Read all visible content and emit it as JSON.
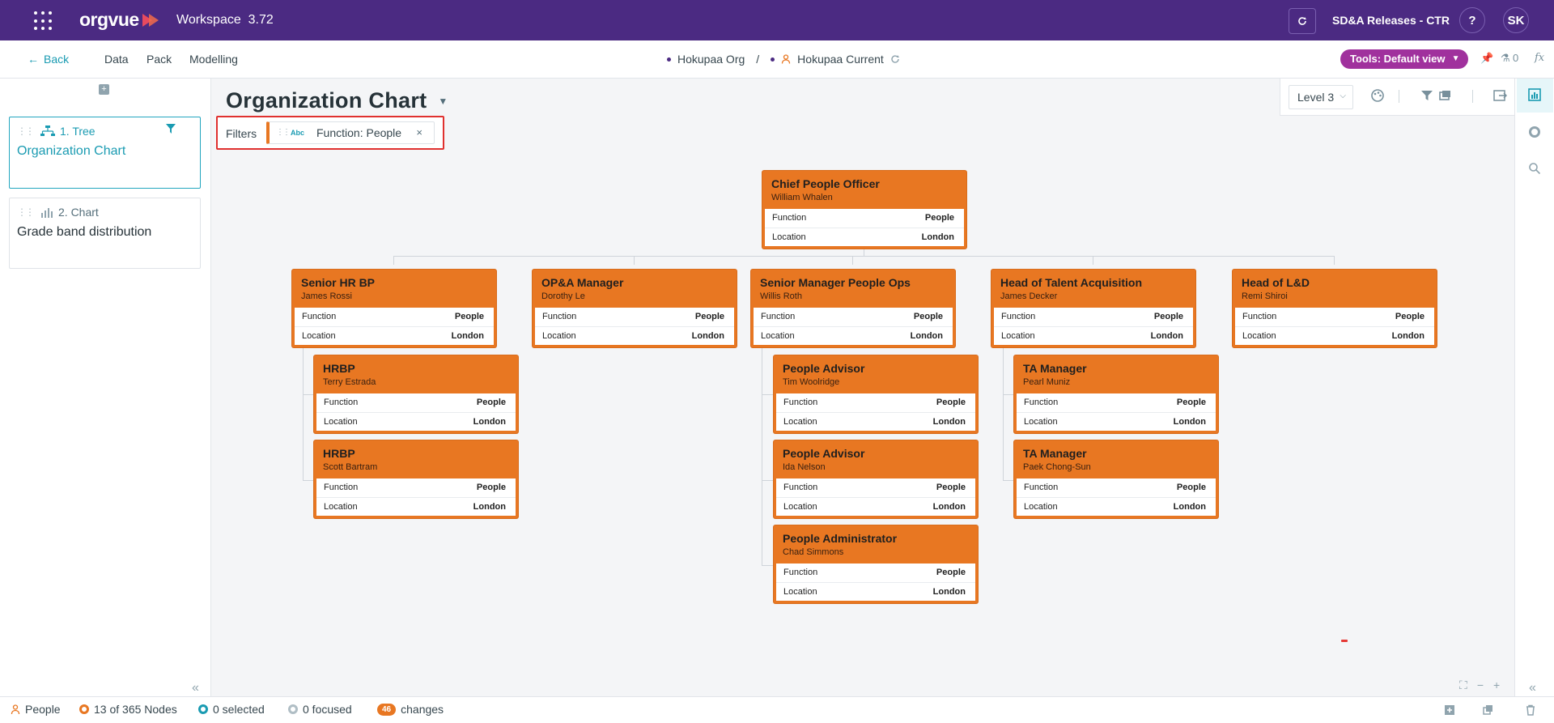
{
  "topbar": {
    "logo_text": "orgvue",
    "workspace_label": "Workspace",
    "version": "3.72",
    "release_label": "SD&A Releases - CTR",
    "help_label": "?",
    "avatar_initials": "SK"
  },
  "subnav": {
    "back_label": "Back",
    "menu": [
      "Data",
      "Pack",
      "Modelling"
    ],
    "breadcrumb": {
      "org": "Hokupaa Org",
      "separator": "/",
      "dataset": "Hokupaa Current"
    },
    "tools_label": "Tools: Default view",
    "count_label": "0",
    "fx_label": "fx"
  },
  "views": [
    {
      "type_label": "1. Tree",
      "title": "Organization Chart",
      "active": true
    },
    {
      "type_label": "2. Chart",
      "title": "Grade band distribution",
      "active": false
    }
  ],
  "main": {
    "title": "Organization Chart",
    "filters_label": "Filters",
    "filter_chip": {
      "type_tag": "Abc",
      "label": "Function: People",
      "remove": "×"
    },
    "level_select": "Level 3"
  },
  "org_chart": {
    "field_labels": {
      "function": "Function",
      "location": "Location"
    },
    "nodes": [
      {
        "title": "Chief People Officer",
        "name": "William Whalen",
        "function": "People",
        "location": "London"
      },
      {
        "title": "Senior HR BP",
        "name": "James Rossi",
        "function": "People",
        "location": "London"
      },
      {
        "title": "OP&A Manager",
        "name": "Dorothy Le",
        "function": "People",
        "location": "London"
      },
      {
        "title": "Senior Manager People Ops",
        "name": "Willis Roth",
        "function": "People",
        "location": "London"
      },
      {
        "title": "Head of Talent Acquisition",
        "name": "James Decker",
        "function": "People",
        "location": "London"
      },
      {
        "title": "Head of L&D",
        "name": "Remi Shiroi",
        "function": "People",
        "location": "London"
      },
      {
        "title": "HRBP",
        "name": "Terry Estrada",
        "function": "People",
        "location": "London"
      },
      {
        "title": "HRBP",
        "name": "Scott Bartram",
        "function": "People",
        "location": "London"
      },
      {
        "title": "People Advisor",
        "name": "Tim Woolridge",
        "function": "People",
        "location": "London"
      },
      {
        "title": "People Advisor",
        "name": "Ida Nelson",
        "function": "People",
        "location": "London"
      },
      {
        "title": "People Administrator",
        "name": "Chad Simmons",
        "function": "People",
        "location": "London"
      },
      {
        "title": "TA Manager",
        "name": "Pearl Muniz",
        "function": "People",
        "location": "London"
      },
      {
        "title": "TA Manager",
        "name": "Paek Chong-Sun",
        "function": "People",
        "location": "London"
      }
    ]
  },
  "statusbar": {
    "dataset_label": "People",
    "nodes_label": "13 of 365 Nodes",
    "selected_label": "0 selected",
    "focused_label": "0 focused",
    "changes_count": "46",
    "changes_label": "changes"
  },
  "colors": {
    "brand_purple": "#4b2a82",
    "accent_teal": "#1a9bb2",
    "node_orange": "#e87722",
    "tools_magenta": "#a0319d",
    "highlight_red": "#e0312f"
  }
}
